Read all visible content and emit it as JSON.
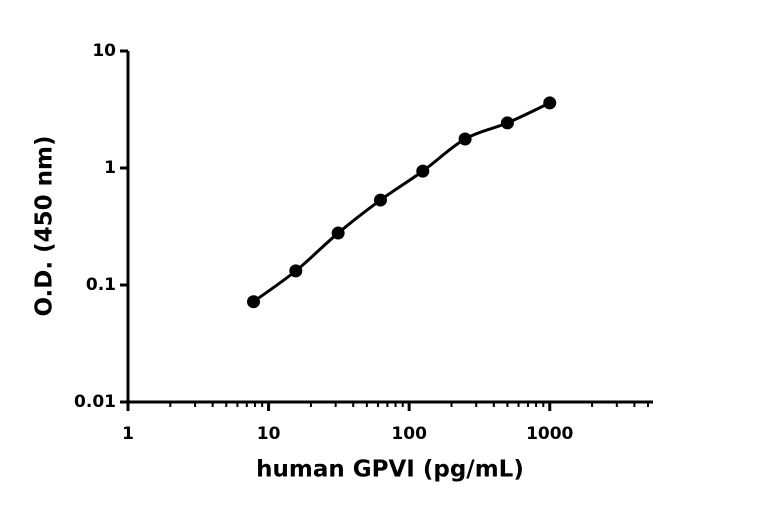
{
  "chart_data": {
    "type": "scatter-line",
    "x_label": "human GPVI (pg/mL)",
    "y_label": "O.D. (450 nm)",
    "x": [
      7.8125,
      15.625,
      31.25,
      62.5,
      125,
      250,
      500,
      1000
    ],
    "series": [
      {
        "color": "#000000",
        "values": [
          0.072,
          0.132,
          0.278,
          0.532,
          0.94,
          1.77,
          2.43,
          3.6
        ]
      }
    ],
    "xscale": "log",
    "yscale": "log",
    "xlim": [
      1,
      5000
    ],
    "ylim": [
      0.01,
      10
    ],
    "xticks": [
      1,
      10,
      100,
      1000
    ],
    "xminorticks": [
      2,
      3,
      4,
      5,
      6,
      7,
      8,
      9,
      20,
      30,
      40,
      50,
      60,
      70,
      80,
      90,
      200,
      300,
      400,
      500,
      600,
      700,
      800,
      900,
      2000,
      3000,
      4000,
      5000
    ],
    "yticks": [
      0.01,
      0.1,
      1,
      10
    ]
  }
}
